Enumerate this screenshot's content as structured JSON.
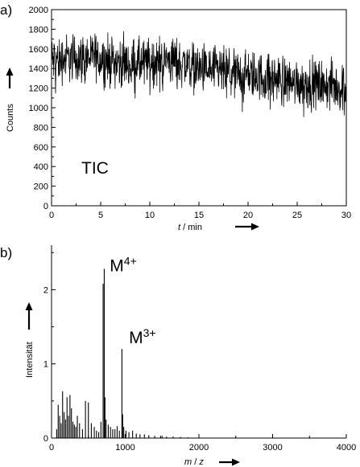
{
  "chart_data": [
    {
      "panel_label": "a)",
      "type": "line",
      "annotation": "TIC",
      "xlabel": {
        "var": "t",
        "rest": " / min"
      },
      "ylabel": "Counts",
      "xlim": [
        0,
        30
      ],
      "ylim": [
        0,
        2000
      ],
      "xticks": [
        0,
        5,
        10,
        15,
        20,
        25,
        30
      ],
      "yticks": [
        0,
        200,
        400,
        600,
        800,
        1000,
        1200,
        1400,
        1600,
        1800,
        2000
      ],
      "series": [
        {
          "trend": {
            "x": [
              0,
              1,
              2,
              3,
              4,
              5,
              6,
              7,
              8,
              9,
              10,
              11,
              12,
              13,
              14,
              15,
              16,
              17,
              18,
              19,
              20,
              21,
              22,
              23,
              24,
              25,
              26,
              27,
              28,
              29,
              30
            ],
            "y": [
              1480,
              1500,
              1510,
              1500,
              1520,
              1510,
              1480,
              1460,
              1460,
              1450,
              1470,
              1480,
              1490,
              1460,
              1440,
              1400,
              1390,
              1370,
              1350,
              1350,
              1340,
              1320,
              1300,
              1290,
              1280,
              1260,
              1250,
              1240,
              1230,
              1210,
              1220
            ]
          },
          "noise_amplitude": 180,
          "line_color": "#000000"
        }
      ]
    },
    {
      "panel_label": "b)",
      "type": "bar",
      "xlabel": {
        "var1": "m",
        "sep": " / ",
        "var2": "z"
      },
      "ylabel": "Intensität",
      "xlim": [
        0,
        4000
      ],
      "ylim": [
        0,
        2.6
      ],
      "xticks": [
        0,
        1000,
        2000,
        3000,
        4000
      ],
      "yticks": [
        0,
        1,
        2
      ],
      "annotations": [
        {
          "base": "M",
          "sup": "4+",
          "x": 790,
          "y": 2.25
        },
        {
          "base": "M",
          "sup": "3+",
          "x": 1050,
          "y": 1.28
        }
      ],
      "peaks": {
        "x": [
          70,
          90,
          110,
          130,
          150,
          170,
          190,
          210,
          230,
          250,
          270,
          290,
          310,
          330,
          350,
          380,
          420,
          460,
          500,
          540,
          580,
          610,
          640,
          670,
          700,
          715,
          725,
          740,
          770,
          800,
          830,
          860,
          890,
          920,
          955,
          965,
          980,
          1010,
          1050,
          1100,
          1150,
          1200,
          1260,
          1320,
          1400,
          1480,
          1560,
          1650,
          1750,
          1850
        ],
        "y": [
          0.12,
          0.45,
          0.3,
          0.2,
          0.63,
          0.35,
          0.25,
          0.55,
          0.3,
          0.58,
          0.4,
          0.22,
          0.18,
          0.15,
          0.3,
          0.2,
          0.12,
          0.5,
          0.48,
          0.2,
          0.15,
          0.1,
          0.08,
          0.22,
          2.08,
          2.28,
          0.55,
          0.25,
          0.18,
          0.15,
          0.12,
          0.12,
          0.16,
          0.1,
          1.2,
          0.32,
          0.15,
          0.1,
          0.08,
          0.1,
          0.06,
          0.05,
          0.05,
          0.04,
          0.03,
          0.03,
          0.02,
          0.02,
          0.015,
          0.01
        ]
      },
      "line_color": "#000000"
    }
  ]
}
